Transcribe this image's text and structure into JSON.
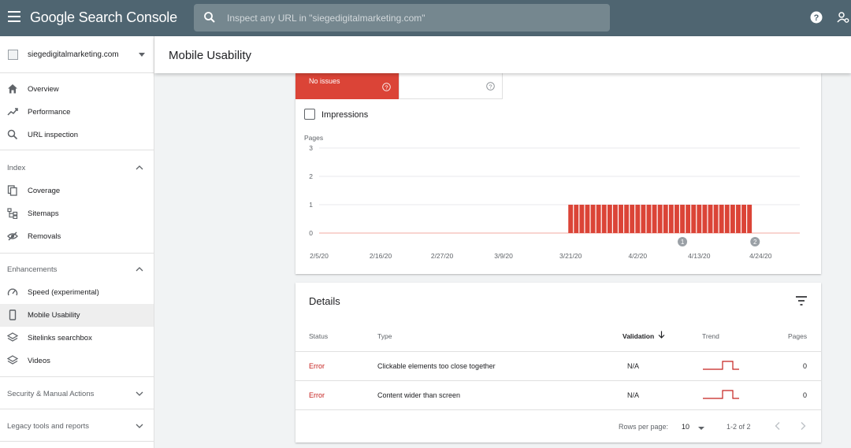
{
  "topbar": {
    "logo": "Google Search Console",
    "search_placeholder": "Inspect any URL in \"siegedigitalmarketing.com\""
  },
  "sidebar": {
    "property": "siegedigitalmarketing.com",
    "items": [
      {
        "label": "Overview",
        "icon": "home-icon"
      },
      {
        "label": "Performance",
        "icon": "trending-icon"
      },
      {
        "label": "URL inspection",
        "icon": "search-icon"
      }
    ],
    "index": {
      "title": "Index",
      "items": [
        {
          "label": "Coverage",
          "icon": "copy-icon"
        },
        {
          "label": "Sitemaps",
          "icon": "sitemap-icon"
        },
        {
          "label": "Removals",
          "icon": "eye-off-icon"
        }
      ]
    },
    "enhancements": {
      "title": "Enhancements",
      "items": [
        {
          "label": "Speed (experimental)",
          "icon": "speedometer-icon"
        },
        {
          "label": "Mobile Usability",
          "icon": "phone-icon",
          "active": true
        },
        {
          "label": "Sitelinks searchbox",
          "icon": "layers-icon"
        },
        {
          "label": "Videos",
          "icon": "layers-icon"
        }
      ]
    },
    "security": "Security & Manual Actions",
    "legacy": "Legacy tools and reports"
  },
  "page": {
    "title": "Mobile Usability"
  },
  "summary": {
    "no_issues_label": "No issues",
    "impressions_label": "Impressions",
    "impressions_checked": false
  },
  "chart_data": {
    "type": "bar",
    "ylabel": "Pages",
    "ylim": [
      0,
      3
    ],
    "y_ticks": [
      "3",
      "2",
      "1",
      "0"
    ],
    "x_tick_labels": [
      "2/5/20",
      "2/16/20",
      "2/27/20",
      "3/9/20",
      "3/21/20",
      "4/2/20",
      "4/13/20",
      "4/24/20"
    ],
    "x_start": "2/5/20",
    "x_end": "5/1/20",
    "bar_start": "3/21/20",
    "bar_end": "4/22/20",
    "bar_value": 1,
    "other_value": 0,
    "bar_color": "#db4437",
    "annotations": [
      {
        "label": "1",
        "date": "4/10/20"
      },
      {
        "label": "2",
        "date": "4/23/20"
      }
    ]
  },
  "details": {
    "title": "Details",
    "columns": [
      "Status",
      "Type",
      "Validation",
      "Trend",
      "Pages"
    ],
    "rows": [
      {
        "status": "Error",
        "type": "Clickable elements too close together",
        "validation": "N/A",
        "pages": "0"
      },
      {
        "status": "Error",
        "type": "Content wider than screen",
        "validation": "N/A",
        "pages": "0"
      }
    ],
    "rows_per_page_label": "Rows per page:",
    "rows_per_page": "10",
    "range": "1-2 of 2"
  },
  "colors": {
    "topbar": "#4f6571",
    "error": "#db4437"
  }
}
